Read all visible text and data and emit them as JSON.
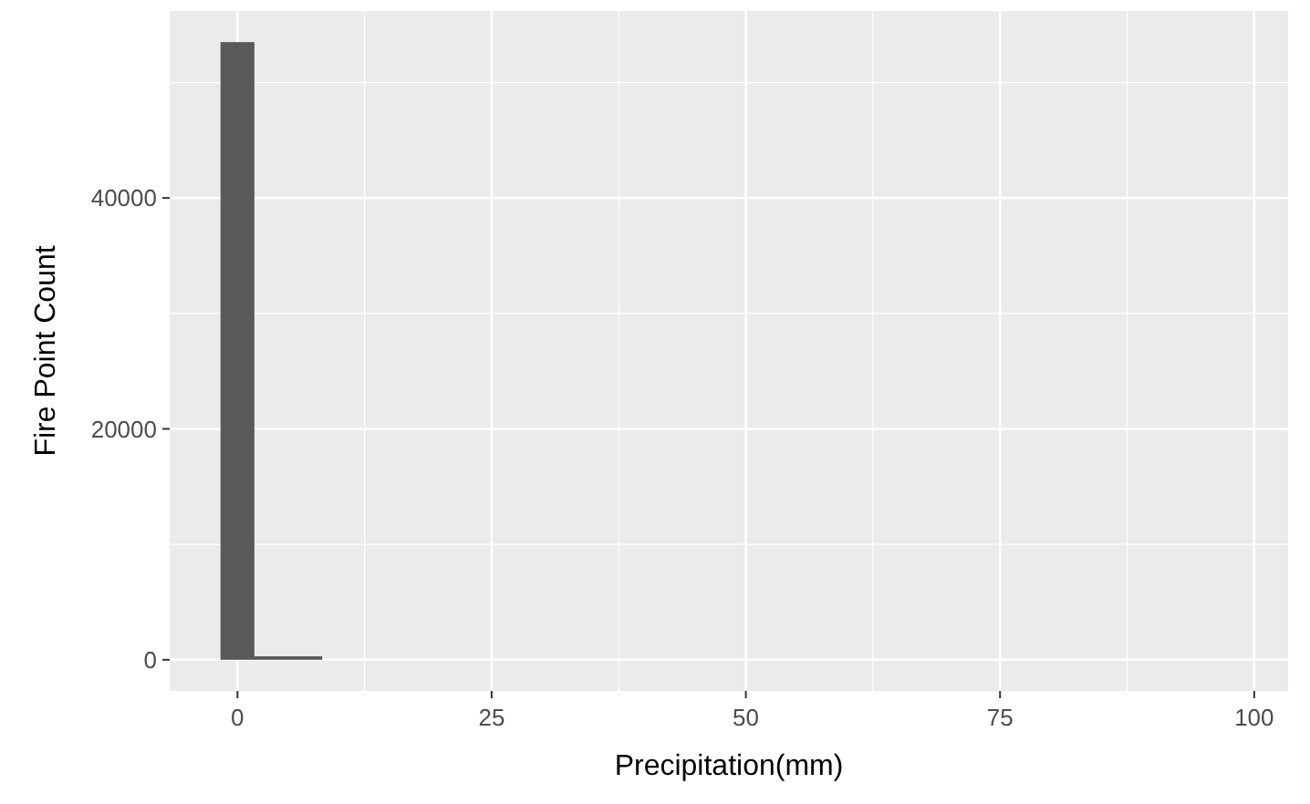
{
  "chart_data": {
    "type": "histogram",
    "xlabel": "Precipitation(mm)",
    "ylabel": "Fire Point Count",
    "bins": [
      -1.667,
      1.667,
      5,
      8.333,
      11.667,
      15,
      18.333,
      21.667,
      25,
      28.333,
      31.667,
      35,
      38.333,
      41.667,
      45,
      48.333,
      51.667,
      55,
      58.333,
      61.667,
      65,
      68.333,
      71.667,
      75,
      78.333,
      81.667,
      85,
      88.333,
      91.667,
      95,
      98.333
    ],
    "values": [
      53500,
      300,
      300,
      0,
      0,
      0,
      0,
      0,
      0,
      0,
      0,
      0,
      0,
      0,
      0,
      0,
      0,
      0,
      0,
      0,
      0,
      0,
      0,
      0,
      0,
      0,
      0,
      0,
      0,
      0
    ],
    "color": "#595959",
    "xlim": [
      -6.667,
      103.333
    ],
    "xticks": [
      0,
      25,
      50,
      75,
      100
    ],
    "ylim": [
      -2700,
      56200
    ],
    "yticks": [
      0,
      20000,
      40000
    ],
    "grid": true
  }
}
